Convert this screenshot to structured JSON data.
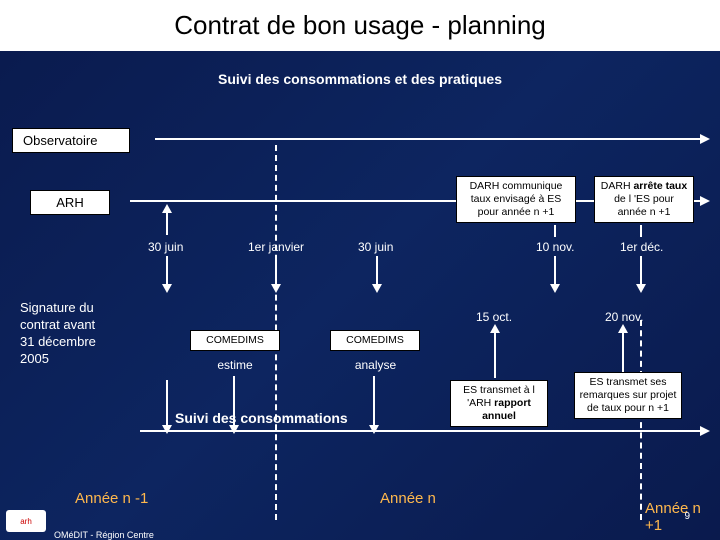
{
  "title": "Contrat de bon usage - planning",
  "subtitle": "Suivi des consommations et des pratiques",
  "lanes": {
    "observatoire": "Observatoire",
    "arh": "ARH"
  },
  "boxes": {
    "darh_comm": "DARH communique taux envisagé à ES pour année n +1",
    "darh_arrete": "DARH arrête taux de l 'ES pour année n +1",
    "es_rapport": "ES transmet à l 'ARH rapport annuel",
    "es_remarques": "ES transmet ses remarques sur projet de taux pour n +1"
  },
  "ticks": {
    "t30juin_a": "30 juin",
    "t1erjan": "1er janvier",
    "t30juin_b": "30 juin",
    "t10nov": "10 nov.",
    "t1erdec": "1er déc."
  },
  "midlabels": {
    "t15oct": "15 oct.",
    "t20nov": "20 nov."
  },
  "signature": {
    "l1": "Signature du",
    "l2": "contrat avant",
    "l3": "31 décembre",
    "l4": "2005"
  },
  "comedims": {
    "label_a": "COMEDIMS",
    "label_b": "COMEDIMS",
    "sub_a": "estime",
    "sub_b": "analyse"
  },
  "consumption": "Suivi des consommations",
  "years": {
    "nm1": "Année n -1",
    "n": "Année n",
    "np1": "Année n +1"
  },
  "footer": "OMéDIT - Région Centre",
  "slide_num": "9",
  "colors": {
    "bg": "#0d2560",
    "text": "#ffffff",
    "accent": "#ffb84d",
    "box_bg": "#ffffff",
    "box_border": "#000000"
  }
}
